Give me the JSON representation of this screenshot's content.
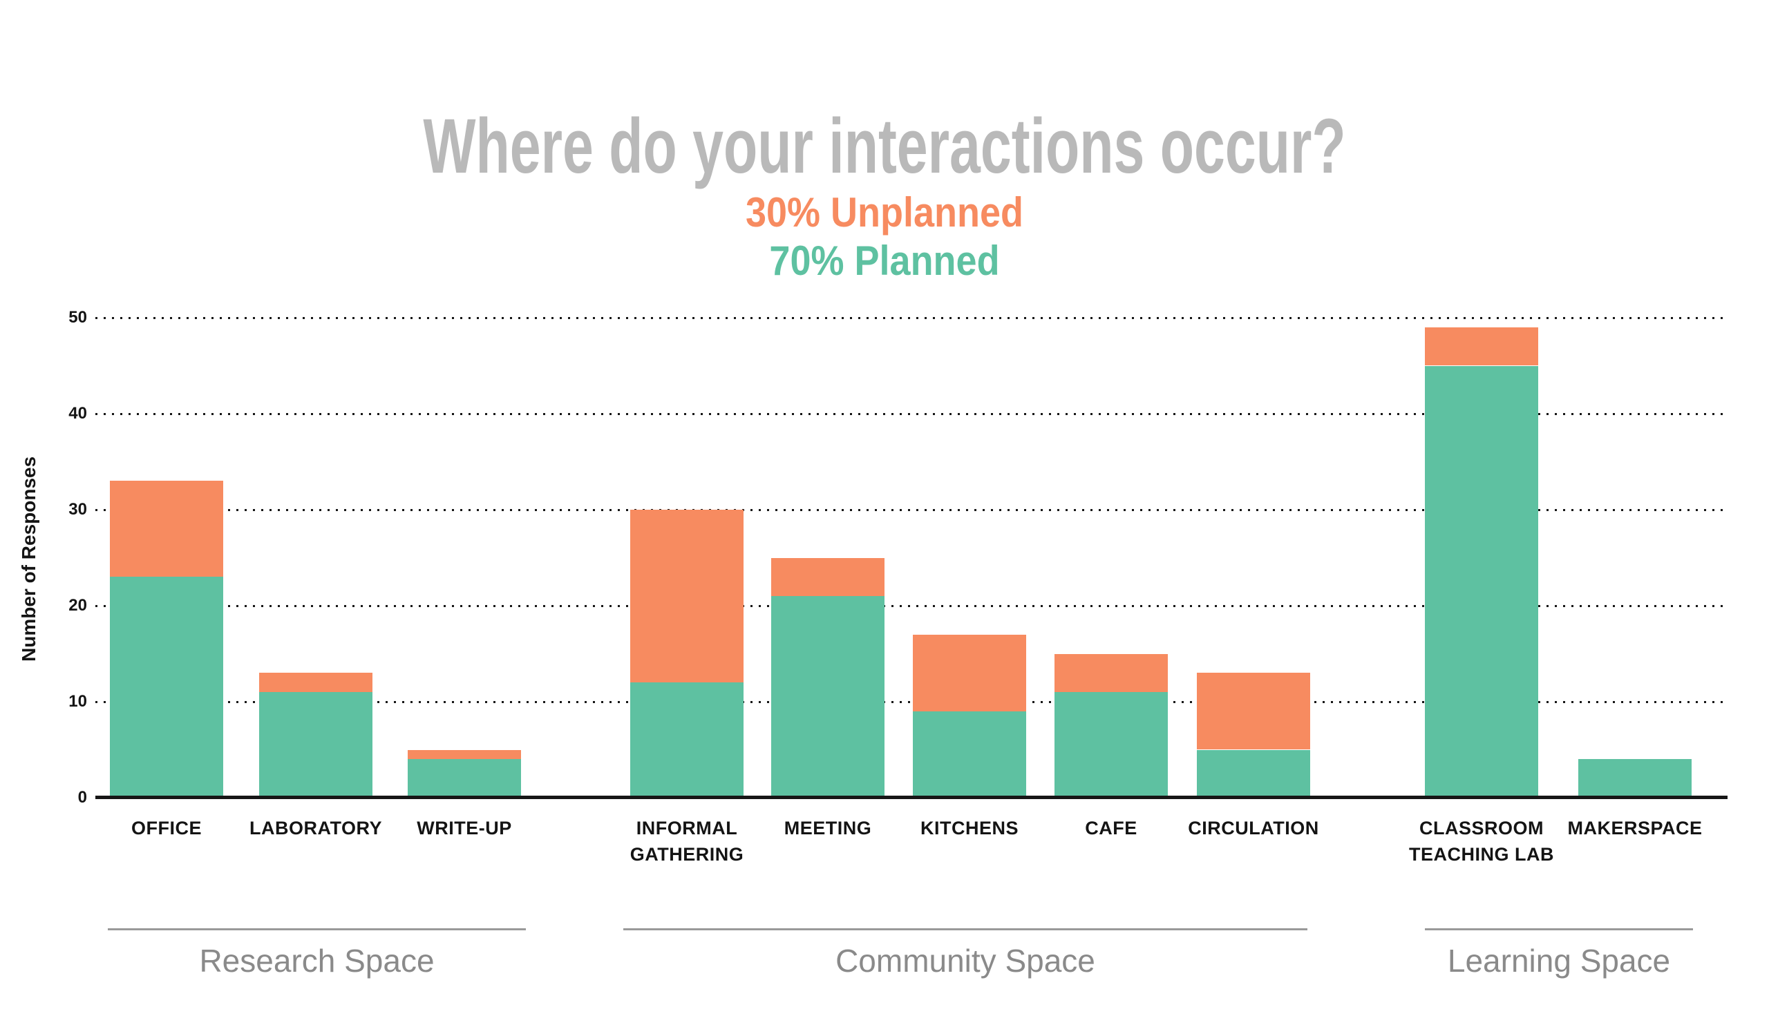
{
  "title": "Where do your interactions occur?",
  "subtitle_unplanned": "30% Unplanned",
  "subtitle_planned": "70% Planned",
  "colors": {
    "unplanned_orange": "#F78B60",
    "planned_green": "#5EC1A1",
    "title_gray": "#b9b9b9",
    "group_label_gray": "#8a8a8a",
    "axis_black": "#141414"
  },
  "chart_data": {
    "type": "bar",
    "stacked": true,
    "title": "Where do your interactions occur?",
    "subtitles": [
      "30% Unplanned",
      "70% Planned"
    ],
    "xlabel": "",
    "ylabel": "Number of Responses",
    "ylim": [
      0,
      50
    ],
    "yticks": [
      0,
      10,
      20,
      30,
      40,
      50
    ],
    "grid": "dotted horizontal lines at 10,20,30,40,50",
    "legend_position": "subtitle above chart",
    "categories": [
      "OFFICE",
      "LABORATORY",
      "WRITE-UP",
      "INFORMAL GATHERING",
      "MEETING",
      "KITCHENS",
      "CAFE",
      "CIRCULATION",
      "CLASSROOM TEACHING LAB",
      "MAKERSPACE"
    ],
    "category_label_lines": [
      [
        "OFFICE"
      ],
      [
        "LABORATORY"
      ],
      [
        "WRITE-UP"
      ],
      [
        "INFORMAL",
        "GATHERING"
      ],
      [
        "MEETING"
      ],
      [
        "KITCHENS"
      ],
      [
        "CAFE"
      ],
      [
        "CIRCULATION"
      ],
      [
        "CLASSROOM",
        "TEACHING LAB"
      ],
      [
        "MAKERSPACE"
      ]
    ],
    "series": [
      {
        "name": "Planned",
        "color": "#5EC1A1",
        "values": [
          23,
          11,
          4,
          12,
          21,
          9,
          11,
          5,
          45,
          4
        ]
      },
      {
        "name": "Unplanned",
        "color": "#F78B60",
        "values": [
          10,
          2,
          1,
          18,
          4,
          8,
          4,
          8,
          4,
          0
        ]
      }
    ],
    "totals": [
      33,
      13,
      5,
      30,
      25,
      17,
      15,
      13,
      49,
      4
    ],
    "groups": [
      {
        "name": "Research Space",
        "category_indexes": [
          0,
          1,
          2
        ]
      },
      {
        "name": "Community Space",
        "category_indexes": [
          3,
          4,
          5,
          6,
          7
        ]
      },
      {
        "name": "Learning Space",
        "category_indexes": [
          8,
          9
        ]
      }
    ]
  }
}
